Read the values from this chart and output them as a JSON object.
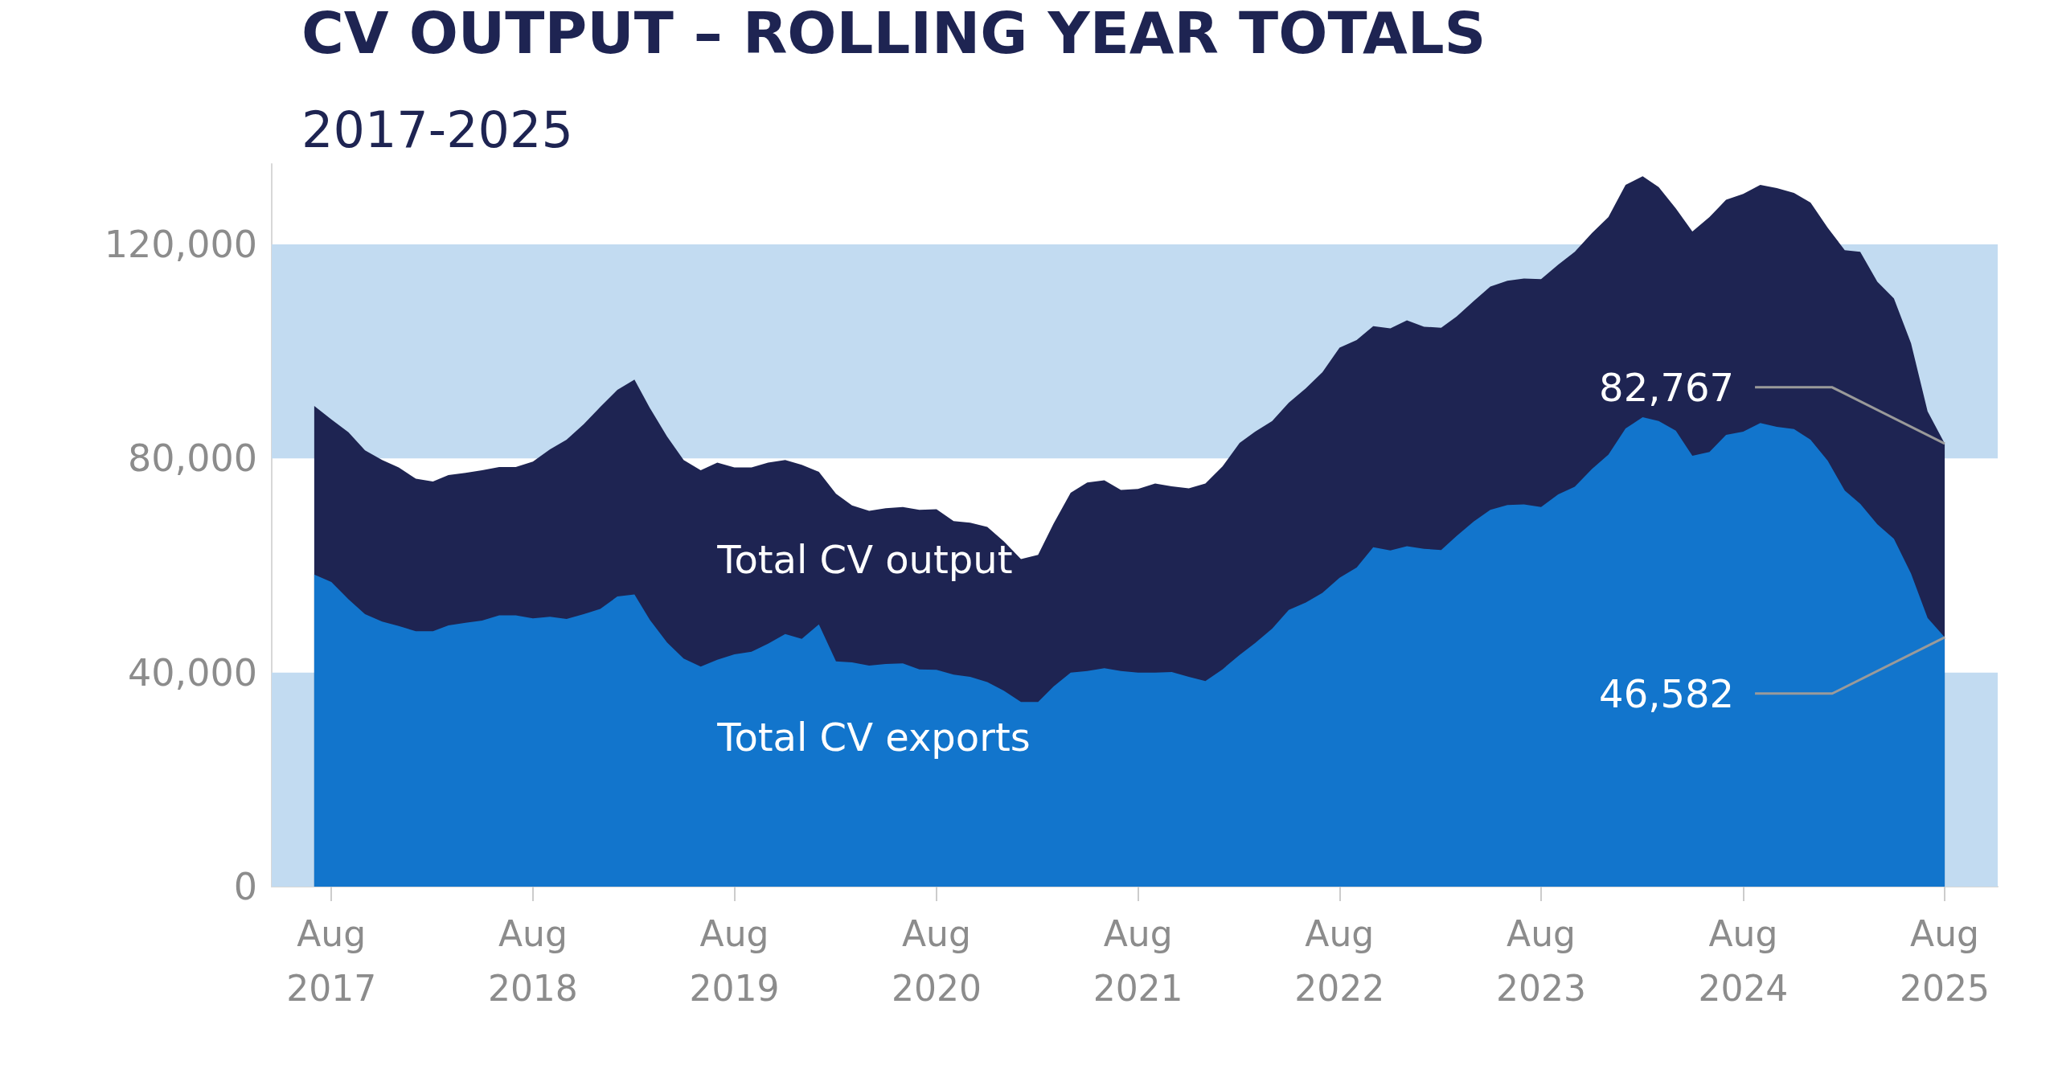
{
  "chart_data": {
    "type": "area",
    "title": "CV OUTPUT – ROLLING YEAR TOTALS",
    "subtitle": "2017-2025",
    "x": [
      "2017-07",
      "2017-08",
      "2017-09",
      "2017-10",
      "2017-11",
      "2017-12",
      "2018-01",
      "2018-02",
      "2018-03",
      "2018-04",
      "2018-05",
      "2018-06",
      "2018-07",
      "2018-08",
      "2018-09",
      "2018-10",
      "2018-11",
      "2018-12",
      "2019-01",
      "2019-02",
      "2019-03",
      "2019-04",
      "2019-05",
      "2019-06",
      "2019-07",
      "2019-08",
      "2019-09",
      "2019-10",
      "2019-11",
      "2019-12",
      "2020-01",
      "2020-02",
      "2020-03",
      "2020-04",
      "2020-05",
      "2020-06",
      "2020-07",
      "2020-08",
      "2020-09",
      "2020-10",
      "2020-11",
      "2020-12",
      "2021-01",
      "2021-02",
      "2021-03",
      "2021-04",
      "2021-05",
      "2021-06",
      "2021-07",
      "2021-08",
      "2021-09",
      "2021-10",
      "2021-11",
      "2021-12",
      "2022-01",
      "2022-02",
      "2022-03",
      "2022-04",
      "2022-05",
      "2022-06",
      "2022-07",
      "2022-08",
      "2022-09",
      "2022-10",
      "2022-11",
      "2022-12",
      "2023-01",
      "2023-02",
      "2023-03",
      "2023-04",
      "2023-05",
      "2023-06",
      "2023-07",
      "2023-08",
      "2023-09",
      "2023-10",
      "2023-11",
      "2023-12",
      "2024-01",
      "2024-02",
      "2024-03",
      "2024-04",
      "2024-05",
      "2024-06",
      "2024-07",
      "2024-08",
      "2024-09",
      "2024-10",
      "2024-11",
      "2024-12",
      "2025-01",
      "2025-02",
      "2025-03",
      "2025-04",
      "2025-05",
      "2025-06",
      "2025-07",
      "2025-08"
    ],
    "series": [
      {
        "name": "Total CV output",
        "color": "#1e2452",
        "values": [
          89800,
          87300,
          84900,
          81500,
          79700,
          78300,
          76200,
          75700,
          76900,
          77300,
          77800,
          78400,
          78400,
          79400,
          81700,
          83500,
          86400,
          89600,
          92800,
          94700,
          89400,
          84100,
          79700,
          77800,
          79200,
          78300,
          78300,
          79200,
          79700,
          78800,
          77500,
          73400,
          71200,
          70200,
          70700,
          70900,
          70400,
          70500,
          68300,
          68000,
          67200,
          64500,
          61200,
          62000,
          67800,
          73600,
          75500,
          75900,
          74100,
          74300,
          75300,
          74800,
          74400,
          75300,
          78500,
          82900,
          85000,
          87000,
          90400,
          93100,
          96100,
          100700,
          102100,
          104700,
          104300,
          105800,
          104600,
          104400,
          106500,
          109400,
          112100,
          113200,
          113600,
          113500,
          116200,
          118600,
          122100,
          125100,
          131100,
          132700,
          130700,
          126700,
          122400,
          125100,
          128300,
          129400,
          131100,
          130500,
          129600,
          127800,
          123100,
          118900,
          118600,
          113000,
          109900,
          101500,
          88800,
          82767
        ],
        "value_labels": [
          null,
          null,
          null,
          null,
          null,
          null,
          null,
          null,
          null,
          null,
          null,
          null,
          null,
          null,
          null,
          null,
          null,
          null,
          null,
          null,
          null,
          null,
          null,
          null,
          null,
          null,
          null,
          null,
          null,
          null,
          null,
          null,
          null,
          null,
          null,
          null,
          null,
          null,
          null,
          null,
          null,
          null,
          null,
          null,
          null,
          null,
          null,
          null,
          null,
          null,
          null,
          null,
          null,
          null,
          null,
          null,
          null,
          null,
          null,
          null,
          null,
          null,
          null,
          null,
          null,
          null,
          null,
          null,
          null,
          null,
          null,
          null,
          null,
          null,
          null,
          null,
          null,
          null,
          null,
          null,
          null,
          null,
          null,
          null,
          null,
          null,
          null,
          null,
          null,
          null,
          null,
          null,
          null,
          null,
          null,
          null,
          null,
          "82,767"
        ]
      },
      {
        "name": "Total CV exports",
        "color": "#1275cc",
        "values": [
          58300,
          56900,
          53700,
          50900,
          49500,
          48700,
          47700,
          47700,
          48800,
          49300,
          49700,
          50700,
          50700,
          50100,
          50400,
          50000,
          50900,
          51900,
          54200,
          54600,
          49800,
          45600,
          42600,
          41100,
          42400,
          43400,
          43900,
          45400,
          47200,
          46300,
          49000,
          42100,
          41900,
          41300,
          41600,
          41700,
          40600,
          40500,
          39600,
          39200,
          38200,
          36600,
          34500,
          34500,
          37400,
          40000,
          40300,
          40800,
          40300,
          40000,
          40000,
          40100,
          39200,
          38400,
          40600,
          43300,
          45500,
          48200,
          51700,
          53100,
          54900,
          57700,
          59600,
          63400,
          62800,
          63600,
          63100,
          62900,
          65500,
          68200,
          70400,
          71300,
          71400,
          70900,
          73300,
          74700,
          78000,
          80700,
          85600,
          87700,
          87000,
          85200,
          80500,
          81200,
          84400,
          85000,
          86600,
          85900,
          85500,
          83500,
          79600,
          74000,
          71500,
          67700,
          65000,
          58500,
          50200,
          46582
        ],
        "value_labels": [
          null,
          null,
          null,
          null,
          null,
          null,
          null,
          null,
          null,
          null,
          null,
          null,
          null,
          null,
          null,
          null,
          null,
          null,
          null,
          null,
          null,
          null,
          null,
          null,
          null,
          null,
          null,
          null,
          null,
          null,
          null,
          null,
          null,
          null,
          null,
          null,
          null,
          null,
          null,
          null,
          null,
          null,
          null,
          null,
          null,
          null,
          null,
          null,
          null,
          null,
          null,
          null,
          null,
          null,
          null,
          null,
          null,
          null,
          null,
          null,
          null,
          null,
          null,
          null,
          null,
          null,
          null,
          null,
          null,
          null,
          null,
          null,
          null,
          null,
          null,
          null,
          null,
          null,
          null,
          null,
          null,
          null,
          null,
          null,
          null,
          null,
          null,
          null,
          null,
          null,
          null,
          null,
          null,
          null,
          null,
          null,
          null,
          "46,582"
        ]
      }
    ],
    "xlim": [
      "2017-04-15",
      "2025-11-05"
    ],
    "xticks": [
      {
        "value": "2017-08",
        "label": "Aug\n2017"
      },
      {
        "value": "2018-08",
        "label": "Aug\n2018"
      },
      {
        "value": "2019-08",
        "label": "Aug\n2019"
      },
      {
        "value": "2020-08",
        "label": "Aug\n2020"
      },
      {
        "value": "2021-08",
        "label": "Aug\n2021"
      },
      {
        "value": "2022-08",
        "label": "Aug\n2022"
      },
      {
        "value": "2023-08",
        "label": "Aug\n2023"
      },
      {
        "value": "2024-08",
        "label": "Aug\n2024"
      },
      {
        "value": "2025-08",
        "label": "Aug\n2025"
      }
    ],
    "yticks": [
      {
        "value": 0,
        "label": "0"
      },
      {
        "value": 40000,
        "label": "40,000"
      },
      {
        "value": 80000,
        "label": "80,000"
      },
      {
        "value": 120000,
        "label": "120,000"
      }
    ],
    "ylim": [
      0,
      135000
    ],
    "bands": [
      {
        "axis": "y",
        "from": 0,
        "to": 40000,
        "color": "#c2dbf1"
      },
      {
        "axis": "y",
        "from": 80000,
        "to": 120000,
        "color": "#c2dbf1"
      }
    ]
  }
}
